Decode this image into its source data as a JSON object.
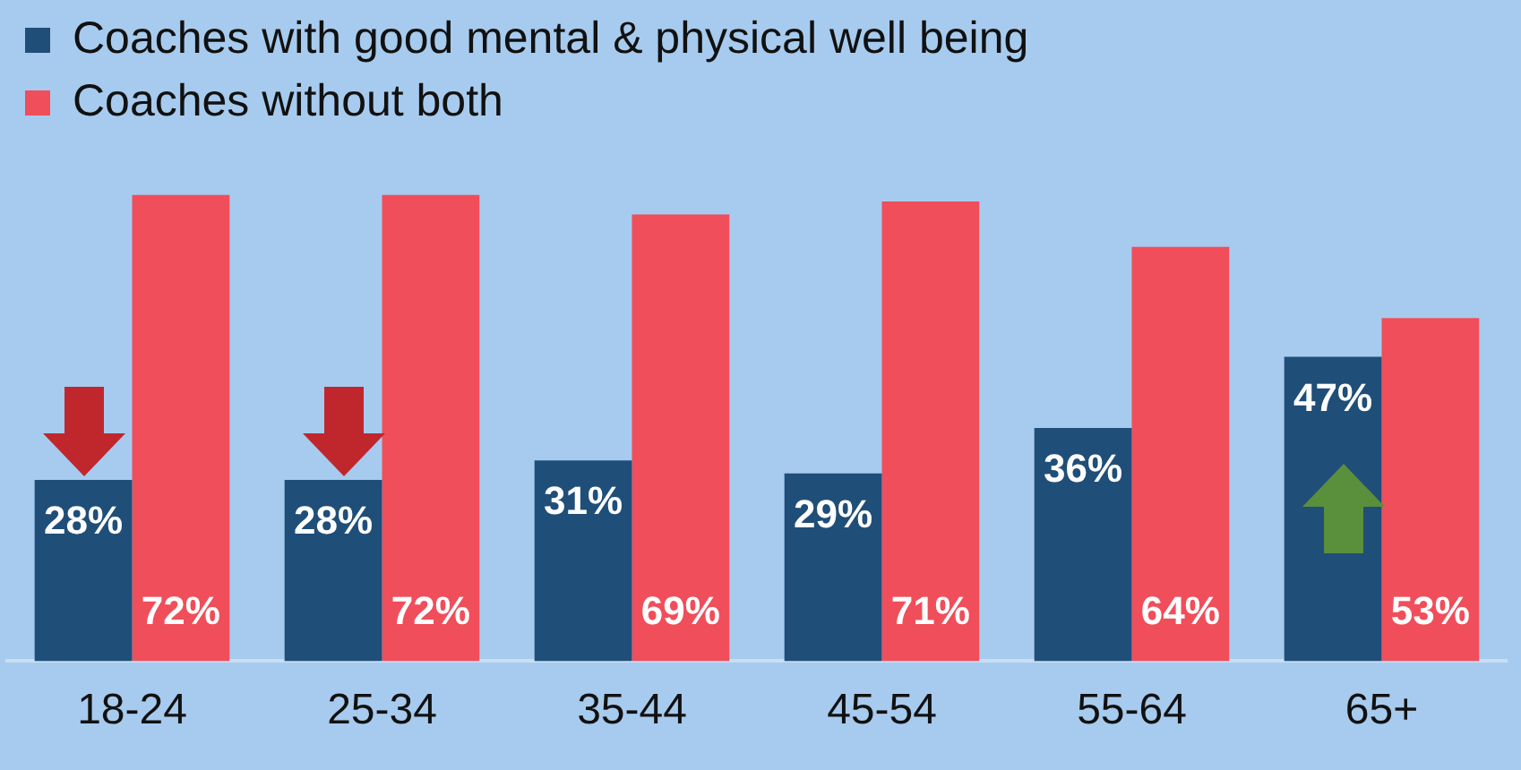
{
  "chart_data": {
    "type": "bar",
    "categories": [
      "18-24",
      "25-34",
      "35-44",
      "45-54",
      "55-64",
      "65+"
    ],
    "series": [
      {
        "name": "Coaches with good mental & physical well being",
        "color": "#1f4e79",
        "values": [
          28,
          28,
          31,
          29,
          36,
          47
        ],
        "value_labels": [
          "28%",
          "28%",
          "31%",
          "29%",
          "36%",
          "47%"
        ]
      },
      {
        "name": "Coaches without both",
        "color": "#f04e5a",
        "values": [
          72,
          72,
          69,
          71,
          64,
          53
        ],
        "value_labels": [
          "72%",
          "72%",
          "69%",
          "71%",
          "64%",
          "53%"
        ]
      }
    ],
    "grid": false,
    "legend": "top"
  }
}
